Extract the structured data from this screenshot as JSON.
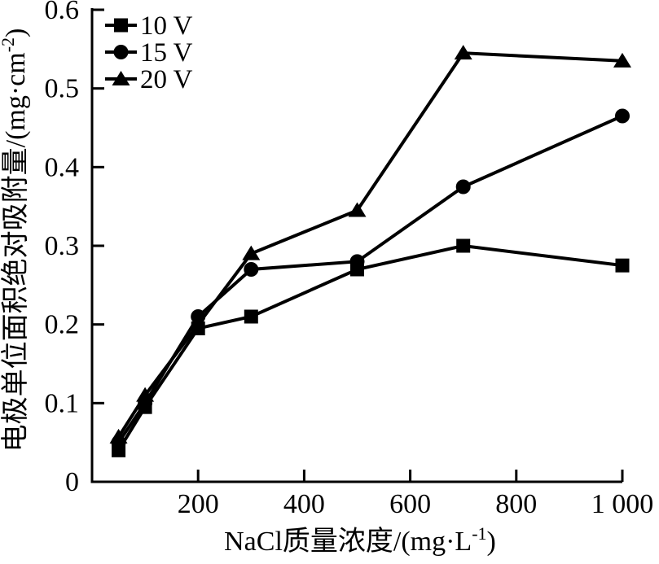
{
  "chart_data": {
    "type": "line",
    "title": "",
    "xlabel": "NaCl质量浓度/(mg·L⁻¹)",
    "ylabel": "电极单位面积绝对吸附量/(mg·cm⁻²)",
    "xlabel_parts": {
      "pre": "NaCl质量浓度/(mg·L",
      "sup": "-1",
      "post": ")"
    },
    "ylabel_parts": {
      "pre": "电极单位面积绝对吸附量/(mg·cm",
      "sup": "-2",
      "post": ")"
    },
    "xlim": [
      0,
      1000
    ],
    "ylim": [
      0,
      0.6
    ],
    "x_ticks": [
      200,
      400,
      600,
      800,
      1000
    ],
    "x_tick_labels": [
      "200",
      "400",
      "600",
      "800",
      "1 000"
    ],
    "y_ticks": [
      0,
      0.1,
      0.2,
      0.3,
      0.4,
      0.5,
      0.6
    ],
    "y_tick_labels": [
      "0",
      "0.1",
      "0.2",
      "0.3",
      "0.4",
      "0.5",
      "0.6"
    ],
    "grid": false,
    "legend_position": "top-left-inside",
    "series": [
      {
        "name": "10 V",
        "marker": "square",
        "points": [
          [
            50,
            0.04
          ],
          [
            100,
            0.095
          ],
          [
            200,
            0.195
          ],
          [
            300,
            0.21
          ],
          [
            500,
            0.27
          ],
          [
            700,
            0.3
          ],
          [
            1000,
            0.275
          ]
        ]
      },
      {
        "name": "15 V",
        "marker": "circle",
        "points": [
          [
            50,
            0.05
          ],
          [
            100,
            0.1
          ],
          [
            200,
            0.21
          ],
          [
            300,
            0.27
          ],
          [
            500,
            0.28
          ],
          [
            700,
            0.375
          ],
          [
            1000,
            0.465
          ]
        ]
      },
      {
        "name": "20 V",
        "marker": "triangle",
        "points": [
          [
            50,
            0.057
          ],
          [
            100,
            0.11
          ],
          [
            300,
            0.29
          ],
          [
            500,
            0.345
          ],
          [
            700,
            0.545
          ],
          [
            1000,
            0.535
          ]
        ]
      }
    ],
    "colors": {
      "ink": "#000000",
      "background": "#ffffff"
    }
  }
}
